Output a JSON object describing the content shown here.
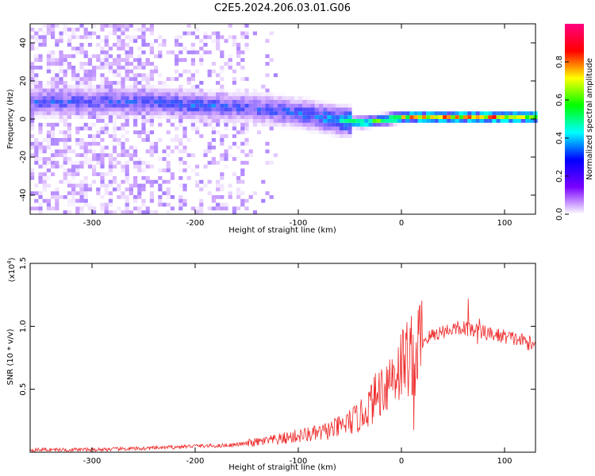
{
  "chart_data": [
    {
      "type": "heatmap",
      "title": "C2E5.2024.206.03.01.G06",
      "xlabel": "Height of straight line (km)",
      "ylabel": "Frequency (Hz)",
      "xlim": [
        -360,
        130
      ],
      "ylim": [
        -50,
        50
      ],
      "xticks": [
        -300,
        -200,
        -100,
        0,
        100
      ],
      "yticks": [
        -40,
        -20,
        0,
        20,
        40
      ],
      "colorbar": {
        "label": "Normalized spectral amplitude",
        "range": [
          0.0,
          1.0
        ],
        "ticks": [
          "0.0",
          "0.2",
          "0.4",
          "0.6",
          "0.8"
        ],
        "tick_values": [
          0.0,
          0.2,
          0.4,
          0.6,
          0.8
        ],
        "colors": [
          "#ffffff",
          "#7a00ff",
          "#0000ff",
          "#00ffff",
          "#00ff00",
          "#ffff00",
          "#ff0000",
          "#ff0080"
        ]
      },
      "ridge": {
        "description_points": [
          {
            "x": -240,
            "freq": 8,
            "amp": 0.35
          },
          {
            "x": -200,
            "freq": 6,
            "amp": 0.4
          },
          {
            "x": -150,
            "freq": 5,
            "amp": 0.35
          },
          {
            "x": -100,
            "freq": 2,
            "amp": 0.4
          },
          {
            "x": -60,
            "freq": -2,
            "amp": 0.5
          },
          {
            "x": -40,
            "freq": -3,
            "amp": 0.7
          },
          {
            "x": 0,
            "freq": 0,
            "amp": 0.85
          },
          {
            "x": 60,
            "freq": 0,
            "amp": 0.9
          },
          {
            "x": 130,
            "freq": 0,
            "amp": 0.85
          }
        ]
      },
      "grid": false
    },
    {
      "type": "line",
      "title": "",
      "xlabel": "Height of straight line (km)",
      "ylabel": "SNR (10 * v/v)",
      "yscale_note": "(x10",
      "yscale_exp": "4",
      "xlim": [
        -360,
        130
      ],
      "ylim": [
        0.0,
        1.5
      ],
      "xticks": [
        -300,
        -200,
        -100,
        0,
        100
      ],
      "yticks": [
        "0.5",
        "1.0",
        "1.5"
      ],
      "ytick_values": [
        0.5,
        1.0,
        1.5
      ],
      "color": "#ee2a2a",
      "series": [
        {
          "x": [
            -360,
            -300,
            -250,
            -220,
            -200,
            -180,
            -160,
            -140,
            -120,
            -100,
            -80,
            -60,
            -40,
            -30,
            -20,
            -10,
            0,
            10,
            20,
            30,
            40,
            50,
            60,
            70,
            80,
            90,
            100,
            110,
            120,
            130
          ],
          "values": [
            0.02,
            0.02,
            0.03,
            0.04,
            0.05,
            0.05,
            0.06,
            0.08,
            0.1,
            0.13,
            0.15,
            0.2,
            0.28,
            0.38,
            0.5,
            0.6,
            0.7,
            0.8,
            0.88,
            0.93,
            0.96,
            0.98,
            0.99,
            0.97,
            0.95,
            0.93,
            0.92,
            0.9,
            0.88,
            0.84
          ]
        }
      ],
      "grid": false
    }
  ]
}
